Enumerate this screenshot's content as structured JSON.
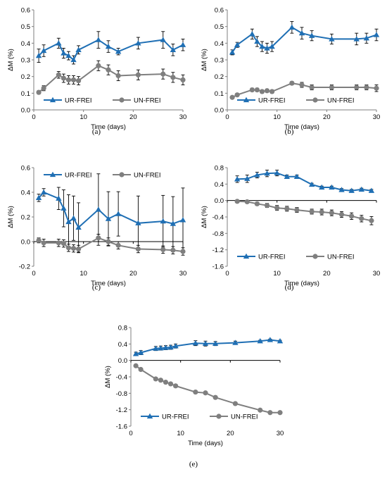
{
  "colors": {
    "ur": "#1f6fb4",
    "un": "#7f7f7f",
    "axis": "#7f7f7f",
    "zero": "#000000",
    "text": "#000000"
  },
  "chart_data": [
    {
      "panel": "a",
      "caption": "(a)",
      "type": "line",
      "xlabel": "Time (days)",
      "ylabel": "ΔM (%)",
      "xlim": [
        0,
        30
      ],
      "ylim": [
        0,
        0.6
      ],
      "xticks": [
        0,
        10,
        20,
        30
      ],
      "yticks": [
        0,
        0.1,
        0.2,
        0.3,
        0.4,
        0.5,
        0.6
      ],
      "ytick_labels": [
        "0.0",
        "0.1",
        "0.2",
        "0.3",
        "0.4",
        "0.5",
        "0.6"
      ],
      "legend": "bottom",
      "series": [
        {
          "name": "UR-FREI",
          "marker": "triangle",
          "color": "#1f6fb4",
          "x": [
            1,
            2,
            5,
            6,
            7,
            8,
            9,
            13,
            15,
            17,
            21,
            26,
            28,
            30
          ],
          "y": [
            0.325,
            0.355,
            0.4,
            0.34,
            0.325,
            0.3,
            0.36,
            0.42,
            0.38,
            0.35,
            0.4,
            0.42,
            0.36,
            0.39
          ],
          "err": [
            0.04,
            0.035,
            0.03,
            0.03,
            0.025,
            0.025,
            0.025,
            0.05,
            0.035,
            0.02,
            0.035,
            0.05,
            0.035,
            0.035
          ]
        },
        {
          "name": "UN-FREI",
          "marker": "circle",
          "color": "#7f7f7f",
          "x": [
            1,
            2,
            5,
            6,
            7,
            8,
            9,
            13,
            15,
            17,
            21,
            26,
            28,
            30
          ],
          "y": [
            0.105,
            0.13,
            0.21,
            0.19,
            0.18,
            0.18,
            0.175,
            0.265,
            0.24,
            0.205,
            0.21,
            0.215,
            0.195,
            0.18
          ],
          "err": [
            0.01,
            0.015,
            0.02,
            0.025,
            0.025,
            0.025,
            0.025,
            0.03,
            0.03,
            0.03,
            0.03,
            0.03,
            0.03,
            0.03
          ]
        }
      ]
    },
    {
      "panel": "b",
      "caption": "(b)",
      "type": "line",
      "xlabel": "Time (days)",
      "ylabel": "ΔM (%)",
      "xlim": [
        0,
        30
      ],
      "ylim": [
        0,
        0.6
      ],
      "xticks": [
        0,
        10,
        20,
        30
      ],
      "yticks": [
        0,
        0.1,
        0.2,
        0.3,
        0.4,
        0.5,
        0.6
      ],
      "ytick_labels": [
        "0.0",
        "0.1",
        "0.2",
        "0.3",
        "0.4",
        "0.5",
        "0.6"
      ],
      "legend": "bottom",
      "series": [
        {
          "name": "UR-FREI",
          "marker": "triangle",
          "color": "#1f6fb4",
          "x": [
            1,
            2,
            5,
            6,
            7,
            8,
            9,
            13,
            15,
            17,
            21,
            26,
            28,
            30
          ],
          "y": [
            0.345,
            0.39,
            0.455,
            0.41,
            0.38,
            0.37,
            0.38,
            0.495,
            0.46,
            0.445,
            0.425,
            0.425,
            0.43,
            0.45
          ],
          "err": [
            0.015,
            0.015,
            0.03,
            0.03,
            0.03,
            0.03,
            0.03,
            0.035,
            0.035,
            0.03,
            0.03,
            0.035,
            0.03,
            0.035
          ]
        },
        {
          "name": "UN-FREI",
          "marker": "circle",
          "color": "#7f7f7f",
          "x": [
            1,
            2,
            5,
            6,
            7,
            8,
            9,
            13,
            15,
            17,
            21,
            26,
            28,
            30
          ],
          "y": [
            0.075,
            0.09,
            0.12,
            0.12,
            0.11,
            0.115,
            0.11,
            0.16,
            0.15,
            0.135,
            0.135,
            0.135,
            0.135,
            0.13
          ],
          "err": [
            0.005,
            0.008,
            0.01,
            0.01,
            0.01,
            0.01,
            0.01,
            0.01,
            0.015,
            0.015,
            0.015,
            0.015,
            0.015,
            0.02
          ]
        }
      ]
    },
    {
      "panel": "c",
      "caption": "(c)",
      "type": "line",
      "xlabel": "Time (days)",
      "ylabel": "ΔM (%)",
      "xlim": [
        0,
        30
      ],
      "ylim": [
        -0.2,
        0.6
      ],
      "xticks": [
        0,
        10,
        20,
        30
      ],
      "yticks": [
        -0.2,
        0,
        0.2,
        0.4,
        0.6
      ],
      "ytick_labels": [
        "-0.2",
        "0.0",
        "0.2",
        "0.4",
        "0.6"
      ],
      "legend": "top",
      "series": [
        {
          "name": "UR-FREI",
          "marker": "triangle",
          "color": "#1f6fb4",
          "x": [
            1,
            2,
            5,
            6,
            7,
            8,
            9,
            13,
            15,
            17,
            21,
            26,
            28,
            30
          ],
          "y": [
            0.355,
            0.4,
            0.35,
            0.27,
            0.16,
            0.19,
            0.115,
            0.26,
            0.185,
            0.225,
            0.15,
            0.165,
            0.145,
            0.175
          ],
          "err": [
            0.03,
            0.03,
            0.09,
            0.15,
            0.22,
            0.18,
            0.2,
            0.29,
            0.22,
            0.18,
            0.22,
            0.21,
            0.22,
            0.26
          ]
        },
        {
          "name": "UN-FREI",
          "marker": "circle",
          "color": "#7f7f7f",
          "x": [
            1,
            2,
            5,
            6,
            7,
            8,
            9,
            13,
            15,
            17,
            21,
            26,
            28,
            30
          ],
          "y": [
            0.01,
            -0.01,
            -0.01,
            -0.015,
            -0.05,
            -0.055,
            -0.06,
            0.03,
            0.0,
            -0.03,
            -0.06,
            -0.065,
            -0.07,
            -0.08
          ],
          "err": [
            0.02,
            0.03,
            0.03,
            0.03,
            0.03,
            0.03,
            0.03,
            0.03,
            0.03,
            0.03,
            0.03,
            0.03,
            0.03,
            0.03
          ]
        }
      ]
    },
    {
      "panel": "d",
      "caption": "(d)",
      "type": "line",
      "xlabel": "Time (days)",
      "ylabel": "ΔM (%)",
      "xlim": [
        0,
        30
      ],
      "ylim": [
        -1.6,
        0.8
      ],
      "xticks": [
        0,
        10,
        20,
        30
      ],
      "yticks": [
        -1.6,
        -1.2,
        -0.8,
        -0.4,
        0,
        0.4,
        0.8
      ],
      "ytick_labels": [
        "-1.6",
        "-1.2",
        "-0.8",
        "-0.4",
        "0.0",
        "0.4",
        "0.8"
      ],
      "legend": "bottom",
      "series": [
        {
          "name": "UR-FREI",
          "marker": "triangle",
          "color": "#1f6fb4",
          "x": [
            2,
            4,
            6,
            8,
            10,
            12,
            14,
            17,
            19,
            21,
            23,
            25,
            27,
            29
          ],
          "y": [
            0.52,
            0.53,
            0.62,
            0.66,
            0.67,
            0.58,
            0.58,
            0.39,
            0.32,
            0.32,
            0.26,
            0.24,
            0.27,
            0.24
          ],
          "err": [
            0.08,
            0.09,
            0.07,
            0.08,
            0.07,
            0.04,
            0.04,
            0.03,
            0.03,
            0.03,
            0.03,
            0.03,
            0.03,
            0.03
          ]
        },
        {
          "name": "UN-FREI",
          "marker": "circle",
          "color": "#7f7f7f",
          "x": [
            2,
            4,
            6,
            8,
            10,
            12,
            14,
            17,
            19,
            21,
            23,
            25,
            27,
            29
          ],
          "y": [
            -0.02,
            -0.03,
            -0.08,
            -0.12,
            -0.18,
            -0.2,
            -0.23,
            -0.27,
            -0.28,
            -0.3,
            -0.34,
            -0.38,
            -0.44,
            -0.49
          ],
          "err": [
            0.03,
            0.03,
            0.04,
            0.05,
            0.06,
            0.06,
            0.06,
            0.06,
            0.07,
            0.07,
            0.07,
            0.08,
            0.08,
            0.1
          ]
        }
      ]
    },
    {
      "panel": "e",
      "caption": "(e)",
      "type": "line",
      "xlabel": "Time (days)",
      "ylabel": "ΔM (%)",
      "xlim": [
        0,
        30
      ],
      "ylim": [
        -1.6,
        0.8
      ],
      "xticks": [
        0,
        10,
        20,
        30
      ],
      "yticks": [
        -1.6,
        -1.2,
        -0.8,
        -0.4,
        0,
        0.4,
        0.8
      ],
      "ytick_labels": [
        "-1.6",
        "-1.2",
        "-0.8",
        "-0.4",
        "0.0",
        "0.4",
        "0.8"
      ],
      "legend": "bottom",
      "series": [
        {
          "name": "UR-FREI",
          "marker": "triangle",
          "color": "#1f6fb4",
          "x": [
            1,
            2,
            5,
            6,
            7,
            8,
            9,
            13,
            15,
            17,
            21,
            26,
            28,
            30
          ],
          "y": [
            0.16,
            0.19,
            0.29,
            0.3,
            0.31,
            0.32,
            0.35,
            0.42,
            0.41,
            0.41,
            0.43,
            0.47,
            0.5,
            0.47
          ],
          "err": [
            0.04,
            0.05,
            0.05,
            0.05,
            0.05,
            0.05,
            0.05,
            0.06,
            0.06,
            0.05,
            0.04,
            0.02,
            0.02,
            0.02
          ]
        },
        {
          "name": "UN-FREI",
          "marker": "circle",
          "color": "#7f7f7f",
          "x": [
            1,
            2,
            5,
            6,
            7,
            8,
            9,
            13,
            15,
            17,
            21,
            26,
            28,
            30
          ],
          "y": [
            -0.13,
            -0.22,
            -0.45,
            -0.48,
            -0.53,
            -0.57,
            -0.62,
            -0.77,
            -0.79,
            -0.9,
            -1.05,
            -1.21,
            -1.27,
            -1.27
          ],
          "err": [
            0.01,
            0.01,
            0.02,
            0.02,
            0.02,
            0.02,
            0.02,
            0.02,
            0.02,
            0.02,
            0.02,
            0.02,
            0.02,
            0.02
          ]
        }
      ]
    }
  ]
}
